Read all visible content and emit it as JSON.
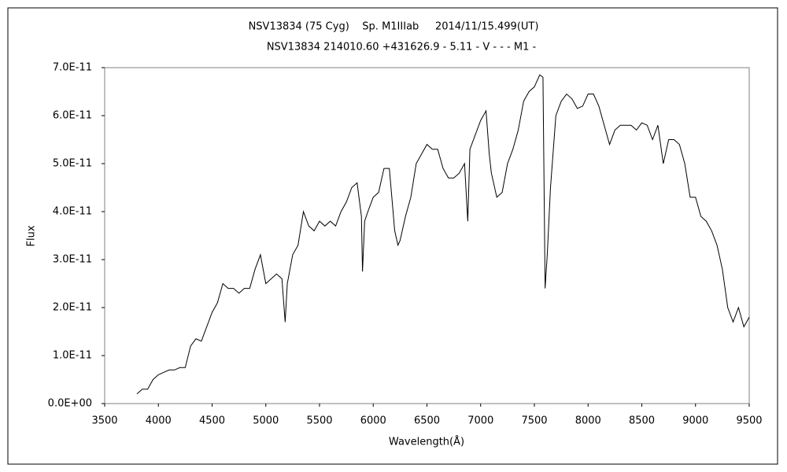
{
  "chart_data": {
    "type": "line",
    "title": "NSV13834 (75 Cyg)    Sp. M1IIIab     2014/11/15.499(UT)",
    "subtitle": "NSV13834 214010.60 +431626.9 - 5.11 - V - - - M1 -",
    "xlabel": "Wavelength(Å)",
    "ylabel": "Flux",
    "color": "#000000",
    "xlim": [
      3500,
      9500
    ],
    "xticks": [
      3500,
      4000,
      4500,
      5000,
      5500,
      6000,
      6500,
      7000,
      7500,
      8000,
      8500,
      9000,
      9500
    ],
    "ylim": [
      0,
      7e-11
    ],
    "yticks": [
      {
        "value": 0,
        "label": "0.0E+00"
      },
      {
        "value": 1e-11,
        "label": "1.0E-11"
      },
      {
        "value": 2e-11,
        "label": "2.0E-11"
      },
      {
        "value": 3e-11,
        "label": "3.0E-11"
      },
      {
        "value": 4e-11,
        "label": "4.0E-11"
      },
      {
        "value": 5e-11,
        "label": "5.0E-11"
      },
      {
        "value": 6e-11,
        "label": "6.0E-11"
      },
      {
        "value": 7e-11,
        "label": "7.0E-11"
      }
    ],
    "x": [
      3800,
      3850,
      3900,
      3950,
      4000,
      4050,
      4100,
      4150,
      4200,
      4250,
      4300,
      4350,
      4400,
      4450,
      4500,
      4550,
      4600,
      4650,
      4700,
      4750,
      4800,
      4850,
      4900,
      4950,
      5000,
      5050,
      5100,
      5150,
      5180,
      5200,
      5250,
      5300,
      5350,
      5400,
      5450,
      5500,
      5550,
      5600,
      5650,
      5700,
      5750,
      5800,
      5850,
      5890,
      5900,
      5920,
      5950,
      6000,
      6050,
      6100,
      6150,
      6200,
      6230,
      6250,
      6300,
      6350,
      6400,
      6450,
      6500,
      6550,
      6600,
      6650,
      6700,
      6750,
      6800,
      6850,
      6880,
      6900,
      6950,
      7000,
      7050,
      7080,
      7100,
      7150,
      7200,
      7250,
      7300,
      7350,
      7400,
      7450,
      7500,
      7550,
      7580,
      7600,
      7620,
      7650,
      7700,
      7750,
      7800,
      7850,
      7900,
      7950,
      8000,
      8050,
      8100,
      8150,
      8200,
      8250,
      8300,
      8350,
      8400,
      8450,
      8500,
      8550,
      8600,
      8650,
      8700,
      8750,
      8800,
      8850,
      8900,
      8950,
      9000,
      9050,
      9100,
      9150,
      9200,
      9250,
      9300,
      9350,
      9400,
      9450,
      9500
    ],
    "values": [
      2e-12,
      3e-12,
      3e-12,
      5e-12,
      6e-12,
      6.5e-12,
      7e-12,
      7e-12,
      7.5e-12,
      7.5e-12,
      1.2e-11,
      1.35e-11,
      1.3e-11,
      1.6e-11,
      1.9e-11,
      2.1e-11,
      2.5e-11,
      2.4e-11,
      2.4e-11,
      2.3e-11,
      2.4e-11,
      2.4e-11,
      2.8e-11,
      3.1e-11,
      2.5e-11,
      2.6e-11,
      2.7e-11,
      2.6e-11,
      1.7e-11,
      2.5e-11,
      3.1e-11,
      3.3e-11,
      4e-11,
      3.7e-11,
      3.6e-11,
      3.8e-11,
      3.7e-11,
      3.8e-11,
      3.7e-11,
      4e-11,
      4.2e-11,
      4.5e-11,
      4.6e-11,
      3.9e-11,
      2.75e-11,
      3.8e-11,
      4e-11,
      4.3e-11,
      4.4e-11,
      4.9e-11,
      4.9e-11,
      3.6e-11,
      3.3e-11,
      3.4e-11,
      3.9e-11,
      4.3e-11,
      5e-11,
      5.2e-11,
      5.4e-11,
      5.3e-11,
      5.3e-11,
      4.9e-11,
      4.7e-11,
      4.7e-11,
      4.8e-11,
      5e-11,
      3.8e-11,
      5.3e-11,
      5.6e-11,
      5.9e-11,
      6.1e-11,
      5.2e-11,
      4.8e-11,
      4.3e-11,
      4.4e-11,
      5e-11,
      5.3e-11,
      5.7e-11,
      6.3e-11,
      6.5e-11,
      6.6e-11,
      6.85e-11,
      6.8e-11,
      2.4e-11,
      3.1e-11,
      4.5e-11,
      6e-11,
      6.3e-11,
      6.45e-11,
      6.35e-11,
      6.15e-11,
      6.2e-11,
      6.45e-11,
      6.45e-11,
      6.2e-11,
      5.8e-11,
      5.4e-11,
      5.7e-11,
      5.8e-11,
      5.8e-11,
      5.8e-11,
      5.7e-11,
      5.85e-11,
      5.8e-11,
      5.5e-11,
      5.8e-11,
      5e-11,
      5.5e-11,
      5.5e-11,
      5.4e-11,
      5e-11,
      4.3e-11,
      4.3e-11,
      3.9e-11,
      3.8e-11,
      3.6e-11,
      3.3e-11,
      2.8e-11,
      2e-11,
      1.7e-11,
      2e-11,
      1.6e-11,
      1.8e-11
    ]
  }
}
